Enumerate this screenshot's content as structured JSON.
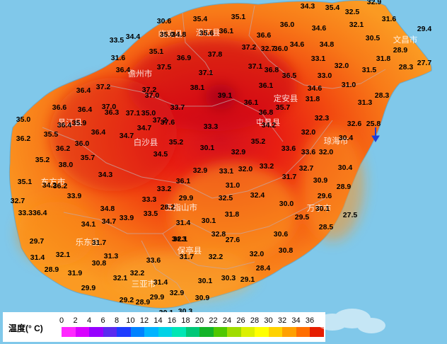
{
  "legend": {
    "title": "温度(° C)",
    "ticks": [
      "0",
      "2",
      "4",
      "6",
      "8",
      "10",
      "12",
      "14",
      "16",
      "18",
      "20",
      "22",
      "24",
      "26",
      "28",
      "30",
      "32",
      "34",
      "36"
    ],
    "colors": [
      "#ff28ff",
      "#d800ff",
      "#9600ff",
      "#5a2af0",
      "#1e3cff",
      "#0082ff",
      "#00b4ff",
      "#00d2e6",
      "#00e6b4",
      "#00c878",
      "#14b428",
      "#50c800",
      "#a0dc00",
      "#dcf000",
      "#ffff00",
      "#ffd200",
      "#ffa000",
      "#ff6e00",
      "#e61e00"
    ]
  },
  "cities": [
    {
      "id": "danzhou",
      "name": "儋州市"
    },
    {
      "id": "chengmai",
      "name": "澄迈县"
    },
    {
      "id": "lingao",
      "name": "临高县"
    },
    {
      "id": "dingan",
      "name": "定安县"
    },
    {
      "id": "wenchang",
      "name": "文昌市"
    },
    {
      "id": "changjiang",
      "name": "昌江县"
    },
    {
      "id": "baisha",
      "name": "白沙县"
    },
    {
      "id": "tunchang",
      "name": "屯昌县"
    },
    {
      "id": "qionghai",
      "name": "琼海市"
    },
    {
      "id": "dongfang",
      "name": "东方市"
    },
    {
      "id": "wanning",
      "name": "万宁市"
    },
    {
      "id": "wuzhishan",
      "name": "五指山市"
    },
    {
      "id": "ledong",
      "name": "乐东县"
    },
    {
      "id": "baoting",
      "name": "保亭县"
    },
    {
      "id": "sanya",
      "name": "三亚市"
    }
  ],
  "temperatures": [
    "34.3",
    "32.9",
    "35.4",
    "32.5",
    "30.6",
    "35.4",
    "35.1",
    "36.0",
    "31.6",
    "29.4",
    "34.4",
    "35.0",
    "34.8",
    "36.1",
    "36.6",
    "34.6",
    "35.6",
    "32.1",
    "30.5",
    "33.5",
    "35.1",
    "37.8",
    "37.2",
    "36.0",
    "34.6",
    "34.8",
    "28.9",
    "31.6",
    "37.5",
    "36.9",
    "37.1",
    "32.7",
    "27.7",
    "36.4",
    "37.1",
    "36.8",
    "36.5",
    "33.1",
    "31.8",
    "31.5",
    "28.3",
    "36.4",
    "37.2",
    "37.2",
    "38.1",
    "39.1",
    "36.1",
    "33.0",
    "32.0",
    "36.6",
    "37.0",
    "37.0",
    "33.7",
    "35.0",
    "36.8",
    "34.6",
    "31.0",
    "28.3",
    "37.1",
    "37.6",
    "36.1",
    "35.7",
    "31.8",
    "31.3",
    "35.0",
    "36.4",
    "35.9",
    "36.3",
    "34.7",
    "36.4",
    "34.2",
    "32.3",
    "32.6",
    "25.8",
    "35.5",
    "36.4",
    "37.2",
    "33.3",
    "32.0",
    "35.2",
    "36.0",
    "34.7",
    "36.2",
    "35.2",
    "33.6",
    "30.4",
    "36.2",
    "34.5",
    "30.1",
    "32.9",
    "35.2",
    "35.7",
    "38.0",
    "33.6",
    "32.0",
    "30.4",
    "36.2",
    "32.9",
    "33.1",
    "32.0",
    "33.2",
    "32.7",
    "35.1",
    "34.2",
    "34.3",
    "36.1",
    "31.7",
    "30.9",
    "31.0",
    "28.9",
    "33.2",
    "29.6",
    "33.9",
    "33.3",
    "32.4",
    "32.7",
    "30.0",
    "33.336.4",
    "29.9",
    "28.2",
    "30.1",
    "34.8",
    "32.5",
    "29.5",
    "27.5",
    "34.1",
    "34.7",
    "33.9",
    "33.5",
    "31.8",
    "31.4",
    "30.1",
    "28.5",
    "32.8",
    "30.6",
    "31.7",
    "34.3",
    "29.7",
    "32.1",
    "27.6",
    "30.8",
    "31.4",
    "32.1",
    "31.3",
    "32.0",
    "33.6",
    "31.7",
    "32.2",
    "30.8",
    "28.4",
    "28.9",
    "31.9",
    "32.1",
    "32.2",
    "30.1",
    "30.3",
    "29.1",
    "31.4",
    "29.9",
    "32.9",
    "29.2",
    "28.9",
    "29.9",
    "30.9",
    "30.1",
    "30.3"
  ]
}
